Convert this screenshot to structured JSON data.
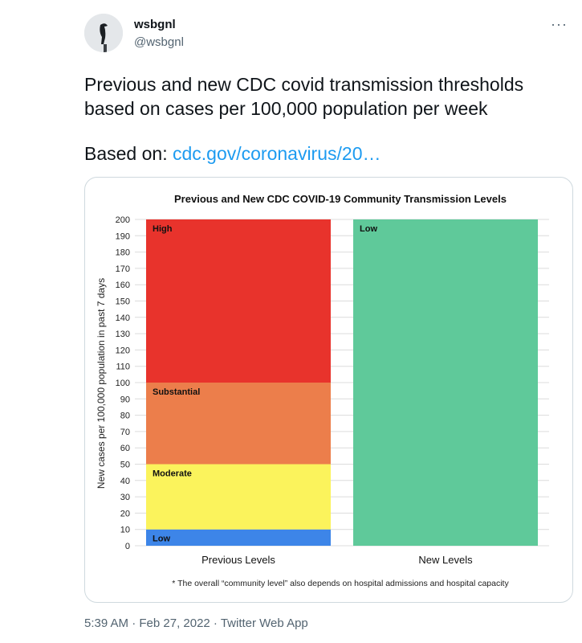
{
  "tweet": {
    "display_name": "wsbgnl",
    "handle": "@wsbgnl",
    "more_label": "···",
    "text": "Previous and new CDC covid transmission thresholds based on cases per 100,000 population per week",
    "based_prefix": "Based on: ",
    "link_text": "cdc.gov/coronavirus/20…",
    "timestamp": "5:39 AM · Feb 27, 2022 · Twitter Web App",
    "avatar_icon": "cormorant-bird-avatar"
  },
  "chart_data": {
    "type": "bar",
    "stacked": true,
    "title": "Previous and New CDC COVID-19 Community Transmission Levels",
    "xlabel": "",
    "ylabel": "New cases per 100,000 population in past 7 days",
    "ylim": [
      0,
      200
    ],
    "ytick_step": 10,
    "grid": true,
    "categories": [
      "Previous Levels",
      "New Levels"
    ],
    "segments": [
      {
        "category": "Previous Levels",
        "label": "Low",
        "from": 0,
        "to": 10,
        "color": "#3d85e8"
      },
      {
        "category": "Previous Levels",
        "label": "Moderate",
        "from": 10,
        "to": 50,
        "color": "#fbf35c"
      },
      {
        "category": "Previous Levels",
        "label": "Substantial",
        "from": 50,
        "to": 100,
        "color": "#ec7e4b"
      },
      {
        "category": "Previous Levels",
        "label": "High",
        "from": 100,
        "to": 200,
        "color": "#e8332c"
      },
      {
        "category": "New Levels",
        "label": "Low",
        "from": 0,
        "to": 200,
        "color": "#5fc99a"
      }
    ],
    "footnote": "* The overall “community level” also depends on hospital admissions and hospital capacity"
  }
}
